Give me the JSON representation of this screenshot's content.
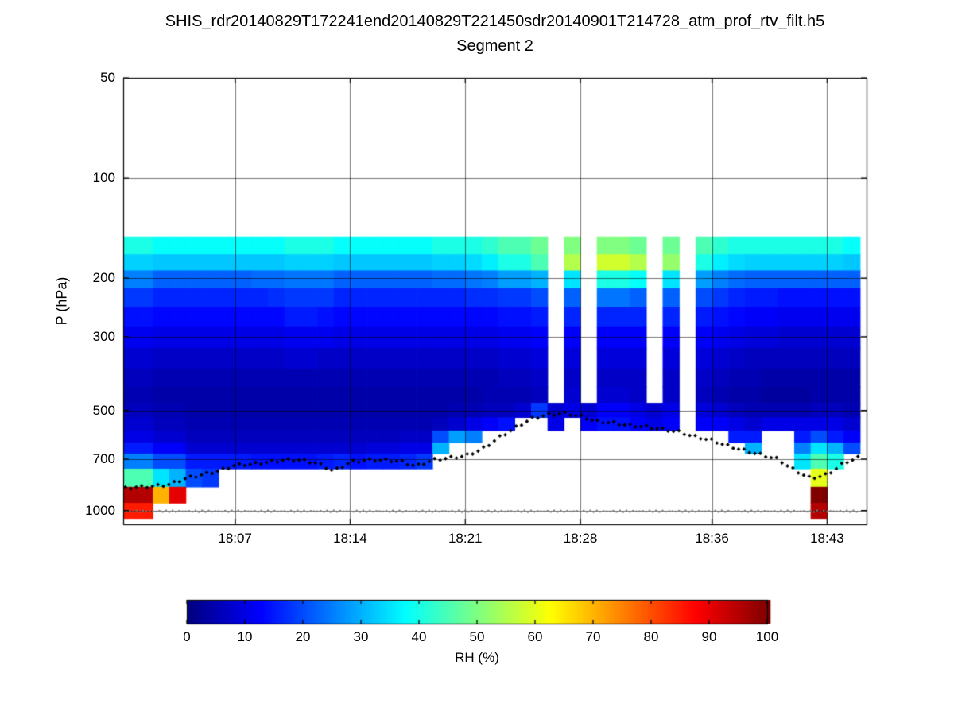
{
  "chart_data": {
    "type": "heatmap",
    "title": "SHIS_rdr20140829T172241end20140829T221450sdr20140901T214728_atm_prof_rtv_filt.h5",
    "subtitle": "Segment 2",
    "xlabel": "",
    "ylabel": "P (hPa)",
    "colormap": "jet",
    "colorbar": {
      "label": "RH (%)",
      "range": [
        0,
        100
      ],
      "ticks": [
        0,
        10,
        20,
        30,
        40,
        50,
        60,
        70,
        80,
        90,
        100
      ]
    },
    "x_axis": {
      "tick_labels": [
        "18:07",
        "18:14",
        "18:21",
        "18:28",
        "18:36",
        "18:43"
      ],
      "tick_minutes": [
        7,
        14,
        21,
        28,
        36,
        43
      ],
      "range_minutes": [
        0.2,
        45.4
      ],
      "grid": true
    },
    "y_axis": {
      "ticks": [
        50,
        100,
        200,
        300,
        500,
        700,
        1000
      ],
      "grid_pressures": [
        100,
        200,
        300,
        500,
        700,
        1000
      ],
      "scale": "log",
      "range": [
        50,
        1100
      ],
      "inverted": true,
      "grid": true
    },
    "pressure_levels": [
      160,
      180,
      200,
      230,
      260,
      300,
      350,
      400,
      450,
      500,
      550,
      600,
      650,
      700,
      800,
      900,
      1000
    ],
    "time_minutes": [
      0.5,
      1.5,
      2.5,
      3.5,
      4.5,
      5.5,
      6.5,
      7.5,
      8.5,
      9.5,
      10.5,
      11.5,
      12.5,
      13.5,
      14.5,
      15.5,
      16.5,
      17.5,
      18.5,
      19.5,
      20.5,
      21.5,
      22.5,
      23.5,
      24.5,
      25.5,
      26.5,
      27.5,
      28.5,
      29.5,
      30.5,
      31.5,
      32.5,
      33.5,
      34.5,
      35.5,
      36.5,
      37.5,
      38.5,
      39.5,
      40.5,
      41.5,
      42.5,
      43.5,
      44.5
    ],
    "rh_grid": [
      [
        40,
        33,
        25,
        18,
        14,
        11,
        8,
        6,
        5,
        6,
        8,
        10,
        15,
        25,
        45,
        95,
        85
      ],
      [
        40,
        33,
        25,
        18,
        14,
        11,
        8,
        6,
        5,
        6,
        8,
        10,
        15,
        25,
        45,
        95,
        85
      ],
      [
        38,
        32,
        22,
        16,
        13,
        10,
        7,
        5,
        4,
        5,
        6,
        8,
        12,
        20,
        35,
        70,
        null
      ],
      [
        38,
        32,
        22,
        16,
        13,
        10,
        7,
        5,
        4,
        5,
        6,
        8,
        12,
        20,
        30,
        90,
        null
      ],
      [
        38,
        32,
        22,
        16,
        13,
        10,
        7,
        5,
        4,
        4,
        5,
        6,
        8,
        15,
        20,
        null,
        null
      ],
      [
        38,
        32,
        22,
        16,
        13,
        10,
        7,
        5,
        4,
        4,
        5,
        6,
        8,
        15,
        18,
        null,
        null
      ],
      [
        38,
        32,
        22,
        16,
        13,
        10,
        7,
        5,
        4,
        4,
        5,
        6,
        8,
        15,
        null,
        null,
        null
      ],
      [
        38,
        32,
        22,
        16,
        13,
        10,
        7,
        5,
        4,
        4,
        5,
        6,
        8,
        15,
        null,
        null,
        null
      ],
      [
        38,
        32,
        23,
        16,
        13,
        10,
        7,
        5,
        4,
        4,
        5,
        6,
        8,
        14,
        null,
        null,
        null
      ],
      [
        38,
        32,
        23,
        17,
        13,
        10,
        7,
        5,
        4,
        4,
        5,
        6,
        8,
        14,
        null,
        null,
        null
      ],
      [
        40,
        33,
        24,
        18,
        15,
        11,
        8,
        5,
        4,
        4,
        5,
        6,
        8,
        14,
        null,
        null,
        null
      ],
      [
        40,
        33,
        24,
        18,
        15,
        11,
        8,
        5,
        4,
        4,
        5,
        6,
        8,
        14,
        null,
        null,
        null
      ],
      [
        40,
        33,
        24,
        18,
        14,
        11,
        7,
        5,
        4,
        4,
        5,
        6,
        8,
        15,
        null,
        null,
        null
      ],
      [
        38,
        32,
        22,
        16,
        13,
        10,
        7,
        5,
        4,
        4,
        5,
        6,
        8,
        16,
        null,
        null,
        null
      ],
      [
        38,
        32,
        22,
        16,
        13,
        10,
        7,
        5,
        4,
        4,
        5,
        6,
        8,
        14,
        null,
        null,
        null
      ],
      [
        38,
        32,
        22,
        16,
        13,
        10,
        7,
        5,
        4,
        4,
        5,
        6,
        9,
        15,
        null,
        null,
        null
      ],
      [
        38,
        32,
        22,
        16,
        13,
        10,
        7,
        5,
        4,
        4,
        5,
        6,
        9,
        15,
        null,
        null,
        null
      ],
      [
        38,
        32,
        22,
        16,
        13,
        10,
        7,
        5,
        4,
        4,
        5,
        7,
        10,
        16,
        null,
        null,
        null
      ],
      [
        38,
        32,
        22,
        16,
        13,
        10,
        7,
        5,
        4,
        4,
        5,
        7,
        10,
        18,
        null,
        null,
        null
      ],
      [
        40,
        33,
        23,
        16,
        13,
        10,
        7,
        5,
        4,
        4,
        6,
        20,
        30,
        null,
        null,
        null,
        null
      ],
      [
        40,
        33,
        23,
        16,
        13,
        10,
        7,
        5,
        4,
        5,
        8,
        28,
        null,
        null,
        null,
        null,
        null
      ],
      [
        40,
        34,
        24,
        17,
        13,
        10,
        7,
        5,
        4,
        5,
        10,
        25,
        null,
        null,
        null,
        null,
        null
      ],
      [
        42,
        36,
        25,
        17,
        13,
        10,
        7,
        5,
        5,
        6,
        12,
        null,
        null,
        null,
        null,
        null,
        null
      ],
      [
        45,
        40,
        28,
        18,
        14,
        11,
        8,
        6,
        5,
        6,
        14,
        null,
        null,
        null,
        null,
        null,
        null
      ],
      [
        45,
        40,
        28,
        18,
        14,
        11,
        8,
        6,
        5,
        8,
        null,
        null,
        null,
        null,
        null,
        null,
        null
      ],
      [
        48,
        45,
        30,
        20,
        15,
        12,
        9,
        7,
        6,
        18,
        null,
        null,
        null,
        null,
        null,
        null,
        null
      ],
      [
        null,
        null,
        null,
        null,
        null,
        null,
        null,
        null,
        null,
        8,
        10,
        null,
        null,
        null,
        null,
        null,
        null
      ],
      [
        50,
        55,
        35,
        22,
        16,
        12,
        9,
        7,
        8,
        10,
        null,
        null,
        null,
        null,
        null,
        null,
        null
      ],
      [
        null,
        null,
        null,
        null,
        null,
        null,
        null,
        null,
        null,
        8,
        12,
        null,
        null,
        null,
        null,
        null,
        null
      ],
      [
        50,
        58,
        40,
        24,
        16,
        12,
        9,
        7,
        8,
        12,
        14,
        null,
        null,
        null,
        null,
        null,
        null
      ],
      [
        50,
        58,
        40,
        24,
        16,
        12,
        9,
        7,
        8,
        12,
        14,
        null,
        null,
        null,
        null,
        null,
        null
      ],
      [
        48,
        55,
        38,
        22,
        16,
        12,
        9,
        7,
        7,
        10,
        12,
        null,
        null,
        null,
        null,
        null,
        null
      ],
      [
        null,
        null,
        null,
        null,
        null,
        null,
        null,
        null,
        null,
        8,
        10,
        null,
        null,
        null,
        null,
        null,
        null
      ],
      [
        48,
        52,
        35,
        22,
        16,
        12,
        9,
        7,
        7,
        10,
        12,
        null,
        null,
        null,
        null,
        null,
        null
      ],
      [
        null,
        null,
        null,
        null,
        null,
        null,
        null,
        null,
        null,
        null,
        null,
        null,
        null,
        null,
        null,
        null,
        null
      ],
      [
        45,
        40,
        28,
        20,
        15,
        12,
        9,
        7,
        6,
        9,
        12,
        null,
        null,
        null,
        null,
        null,
        null
      ],
      [
        42,
        36,
        25,
        18,
        14,
        11,
        8,
        6,
        5,
        8,
        12,
        null,
        null,
        null,
        null,
        null,
        null
      ],
      [
        40,
        34,
        23,
        16,
        13,
        10,
        7,
        5,
        4,
        6,
        10,
        15,
        null,
        null,
        null,
        null,
        null
      ],
      [
        40,
        33,
        22,
        15,
        12,
        9,
        6,
        5,
        4,
        5,
        8,
        15,
        30,
        null,
        null,
        null,
        null
      ],
      [
        40,
        33,
        22,
        15,
        12,
        9,
        6,
        4,
        3,
        5,
        10,
        null,
        null,
        null,
        null,
        null,
        null
      ],
      [
        40,
        33,
        22,
        14,
        11,
        8,
        6,
        4,
        3,
        5,
        10,
        null,
        null,
        null,
        null,
        null,
        null
      ],
      [
        40,
        33,
        22,
        14,
        11,
        8,
        6,
        4,
        3,
        5,
        10,
        15,
        25,
        35,
        null,
        null,
        null
      ],
      [
        40,
        33,
        22,
        14,
        11,
        8,
        6,
        4,
        4,
        6,
        10,
        20,
        35,
        45,
        60,
        100,
        95
      ],
      [
        40,
        33,
        22,
        14,
        11,
        8,
        6,
        4,
        4,
        6,
        10,
        15,
        30,
        40,
        null,
        null,
        null
      ],
      [
        38,
        32,
        22,
        14,
        11,
        8,
        6,
        4,
        4,
        5,
        8,
        12,
        20,
        null,
        null,
        null,
        null
      ]
    ],
    "cloud_top_trace_hpa": [
      860,
      850,
      845,
      835,
      800,
      780,
      760,
      730,
      725,
      715,
      705,
      705,
      720,
      760,
      715,
      705,
      705,
      710,
      735,
      705,
      695,
      685,
      655,
      605,
      565,
      530,
      515,
      510,
      520,
      540,
      545,
      555,
      560,
      570,
      580,
      600,
      615,
      640,
      660,
      680,
      700,
      755,
      800,
      780,
      720,
      690
    ],
    "cloud_top_trace_start_minute": 0,
    "cloud_top_trace_step_minutes": 1,
    "surface_trace_hpa": 1005
  }
}
